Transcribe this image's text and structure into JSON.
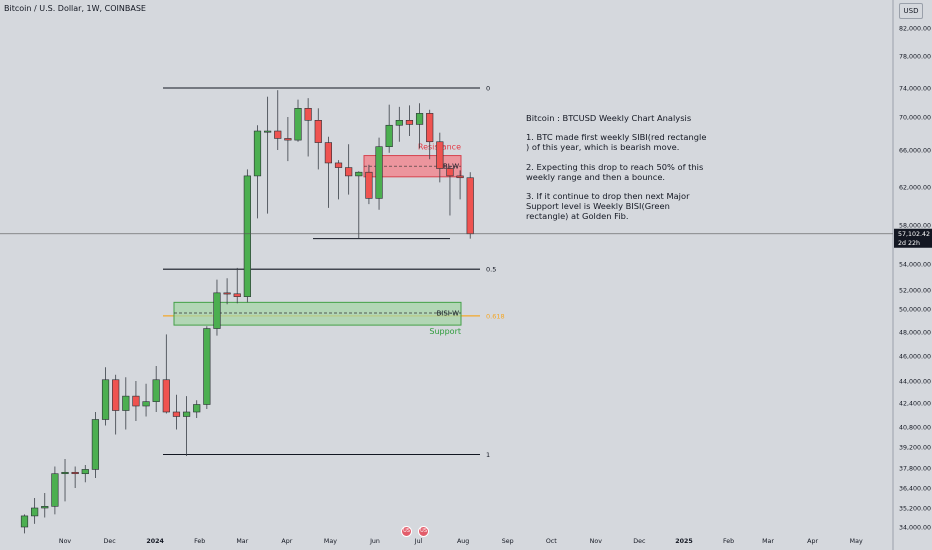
{
  "header": {
    "title": "Bitcoin / U.S. Dollar, 1W, COINBASE"
  },
  "currency_button": "USD",
  "colors": {
    "up": "#4caf50",
    "down": "#ef5350",
    "background": "#d5d8dd",
    "resistance_zone": "#f08a92",
    "support_zone": "#a5d6a7",
    "fib_618": "#f5a623",
    "price_tag": "#131722"
  },
  "analysis_note": {
    "title": "Bitcoin : BTCUSD Weekly Chart Analysis",
    "points": [
      "1. BTC made first weekly SIBI(red rectangle\n) of this year, which is bearish move.",
      "2. Expecting this drop to reach 50% of this\nweekly range and then a bounce.",
      "3. If it continue to drop then next Major\nSupport level is  Weekly BISI(Green\nrectangle) at Golden Fib."
    ]
  },
  "event_flags": [
    "US",
    "US"
  ],
  "chart_data": {
    "type": "candlestick",
    "title": "Bitcoin / U.S. Dollar, 1W, COINBASE",
    "y_axis": {
      "ticks": [
        {
          "value": 34000,
          "label": "34,000.00"
        },
        {
          "value": 35200,
          "label": "35,200.00"
        },
        {
          "value": 36400,
          "label": "36,400.00"
        },
        {
          "value": 37800,
          "label": "37,800.00"
        },
        {
          "value": 39200,
          "label": "39,200.00"
        },
        {
          "value": 40800,
          "label": "40,800.00"
        },
        {
          "value": 42400,
          "label": "42,400.00"
        },
        {
          "value": 44000,
          "label": "44,000.00"
        },
        {
          "value": 46000,
          "label": "46,000.00"
        },
        {
          "value": 48000,
          "label": "48,000.00"
        },
        {
          "value": 50000,
          "label": "50,000.00"
        },
        {
          "value": 52000,
          "label": "52,000.00"
        },
        {
          "value": 54000,
          "label": "54,000.00"
        },
        {
          "value": 58000,
          "label": "58,000.00"
        },
        {
          "value": 62000,
          "label": "62,000.00"
        },
        {
          "value": 66000,
          "label": "66,000.00"
        },
        {
          "value": 70000,
          "label": "70,000.00"
        },
        {
          "value": 74000,
          "label": "74,000.00"
        },
        {
          "value": 78000,
          "label": "78,000.00"
        },
        {
          "value": 82000,
          "label": "82,000.00"
        }
      ]
    },
    "x_axis": {
      "labels": [
        {
          "t": 4,
          "label": "Nov",
          "bold": false
        },
        {
          "t": 8.4,
          "label": "Dec",
          "bold": false
        },
        {
          "t": 12.9,
          "label": "2024",
          "bold": true
        },
        {
          "t": 17.3,
          "label": "Feb",
          "bold": false
        },
        {
          "t": 21.5,
          "label": "Mar",
          "bold": false
        },
        {
          "t": 25.9,
          "label": "Apr",
          "bold": false
        },
        {
          "t": 30.2,
          "label": "May",
          "bold": false
        },
        {
          "t": 34.6,
          "label": "Jun",
          "bold": false
        },
        {
          "t": 38.9,
          "label": "Jul",
          "bold": false
        },
        {
          "t": 43.3,
          "label": "Aug",
          "bold": false
        },
        {
          "t": 47.7,
          "label": "Sep",
          "bold": false
        },
        {
          "t": 52,
          "label": "Oct",
          "bold": false
        },
        {
          "t": 56.4,
          "label": "Nov",
          "bold": false
        },
        {
          "t": 60.7,
          "label": "Dec",
          "bold": false
        },
        {
          "t": 65.1,
          "label": "2025",
          "bold": true
        },
        {
          "t": 69.5,
          "label": "Feb",
          "bold": false
        },
        {
          "t": 73.4,
          "label": "Mar",
          "bold": false
        },
        {
          "t": 77.8,
          "label": "Apr",
          "bold": false
        },
        {
          "t": 82.1,
          "label": "May",
          "bold": false
        }
      ]
    },
    "candles": [
      {
        "o": 34000,
        "h": 34800,
        "l": 33600,
        "c": 34700
      },
      {
        "o": 34700,
        "h": 35800,
        "l": 34200,
        "c": 35200
      },
      {
        "o": 35200,
        "h": 36100,
        "l": 34600,
        "c": 35300
      },
      {
        "o": 35300,
        "h": 37900,
        "l": 34800,
        "c": 37400
      },
      {
        "o": 37400,
        "h": 38400,
        "l": 35600,
        "c": 37500
      },
      {
        "o": 37500,
        "h": 37900,
        "l": 36400,
        "c": 37400
      },
      {
        "o": 37400,
        "h": 38000,
        "l": 36800,
        "c": 37700
      },
      {
        "o": 37700,
        "h": 41800,
        "l": 37100,
        "c": 41300
      },
      {
        "o": 41300,
        "h": 45100,
        "l": 40900,
        "c": 44100
      },
      {
        "o": 44100,
        "h": 44500,
        "l": 40200,
        "c": 41900
      },
      {
        "o": 41900,
        "h": 44300,
        "l": 40600,
        "c": 42900
      },
      {
        "o": 42900,
        "h": 44000,
        "l": 41200,
        "c": 42200
      },
      {
        "o": 42200,
        "h": 43800,
        "l": 41500,
        "c": 42500
      },
      {
        "o": 42500,
        "h": 45200,
        "l": 41800,
        "c": 44100
      },
      {
        "o": 44100,
        "h": 47800,
        "l": 41700,
        "c": 41800
      },
      {
        "o": 41800,
        "h": 43000,
        "l": 40600,
        "c": 41500
      },
      {
        "o": 41500,
        "h": 42900,
        "l": 38600,
        "c": 41800
      },
      {
        "o": 41800,
        "h": 42600,
        "l": 41400,
        "c": 42300
      },
      {
        "o": 42300,
        "h": 48500,
        "l": 42000,
        "c": 48300
      },
      {
        "o": 48300,
        "h": 52800,
        "l": 47700,
        "c": 51700
      },
      {
        "o": 51700,
        "h": 52900,
        "l": 50500,
        "c": 51600
      },
      {
        "o": 51600,
        "h": 53700,
        "l": 50600,
        "c": 51300
      },
      {
        "o": 51300,
        "h": 63900,
        "l": 50700,
        "c": 63200
      },
      {
        "o": 63200,
        "h": 69000,
        "l": 58700,
        "c": 68300
      },
      {
        "o": 68300,
        "h": 72800,
        "l": 59200,
        "c": 68300
      },
      {
        "o": 68300,
        "h": 73700,
        "l": 66000,
        "c": 67400
      },
      {
        "o": 67400,
        "h": 70000,
        "l": 64800,
        "c": 67200
      },
      {
        "o": 67200,
        "h": 72400,
        "l": 67000,
        "c": 71200
      },
      {
        "o": 71200,
        "h": 72600,
        "l": 65300,
        "c": 69600
      },
      {
        "o": 69600,
        "h": 71200,
        "l": 63900,
        "c": 66900
      },
      {
        "o": 66900,
        "h": 67600,
        "l": 59800,
        "c": 64600
      },
      {
        "o": 64600,
        "h": 64900,
        "l": 60700,
        "c": 64100
      },
      {
        "o": 64100,
        "h": 66700,
        "l": 61200,
        "c": 63200
      },
      {
        "o": 63200,
        "h": 63700,
        "l": 56600,
        "c": 63600
      },
      {
        "o": 63600,
        "h": 64400,
        "l": 60200,
        "c": 60800
      },
      {
        "o": 60800,
        "h": 67500,
        "l": 59600,
        "c": 66400
      },
      {
        "o": 66400,
        "h": 71700,
        "l": 65700,
        "c": 69000
      },
      {
        "o": 69000,
        "h": 71400,
        "l": 67000,
        "c": 69600
      },
      {
        "o": 69600,
        "h": 71600,
        "l": 67700,
        "c": 69100
      },
      {
        "o": 69100,
        "h": 71900,
        "l": 66200,
        "c": 70500
      },
      {
        "o": 70500,
        "h": 71000,
        "l": 65000,
        "c": 67000
      },
      {
        "o": 67000,
        "h": 68100,
        "l": 62500,
        "c": 64000
      },
      {
        "o": 64000,
        "h": 64300,
        "l": 59000,
        "c": 63200
      },
      {
        "o": 63200,
        "h": 63800,
        "l": 60700,
        "c": 63000
      },
      {
        "o": 63000,
        "h": 63600,
        "l": 56600,
        "c": 57100
      }
    ],
    "fib_levels": [
      {
        "value": 74000,
        "label": "0"
      },
      {
        "value": 53600,
        "label": "0.5"
      },
      {
        "value": 49400,
        "label": "0.618"
      },
      {
        "value": 38700,
        "label": "1"
      }
    ],
    "zones": [
      {
        "name": "SIBI-W",
        "caption": "Resistance",
        "from": 63100,
        "to": 65400,
        "mid": 64250,
        "type": "resistance"
      },
      {
        "name": "BISI-W",
        "caption": "Support",
        "from": 48600,
        "to": 50700,
        "mid": 49650,
        "type": "support"
      }
    ],
    "recent_low_line": 56600,
    "current_price": {
      "value": 57102.42,
      "label": "57,102.42",
      "countdown": "2d 22h"
    }
  }
}
